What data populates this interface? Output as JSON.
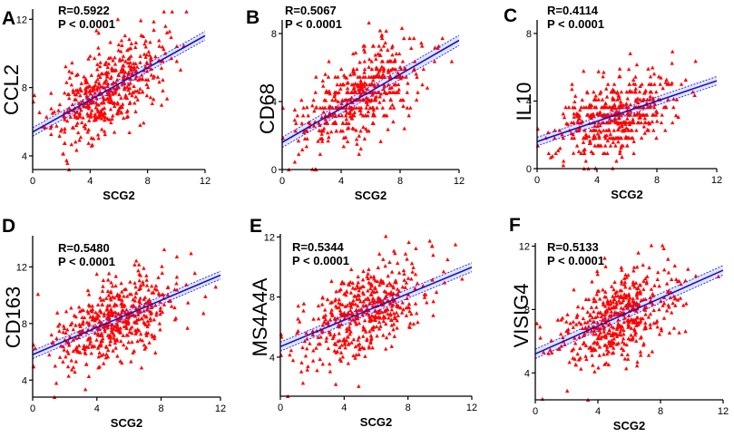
{
  "chart_data": [
    {
      "panel": "A",
      "type": "scatter",
      "xlabel": "SCG2",
      "ylabel": "CCL2",
      "r_text": "R=0.5922",
      "p_text": "P < 0.0001",
      "xlim": [
        0,
        12
      ],
      "ylim": [
        3.2,
        12.6
      ],
      "xticks": [
        "0",
        "4",
        "8",
        "12"
      ],
      "yticks": [
        "4",
        "8",
        "12"
      ],
      "xtick_values": [
        0,
        4,
        8,
        12
      ],
      "ytick_values": [
        4,
        8,
        12
      ],
      "fit": {
        "intercept": 5.4,
        "slope": 0.47,
        "ci": 0.25
      },
      "n_points": 500,
      "points_seed": 11
    },
    {
      "panel": "B",
      "type": "scatter",
      "xlabel": "SCG2",
      "ylabel": "CD68",
      "r_text": "R=0.5067",
      "p_text": "P < 0.0001",
      "xlim": [
        0,
        12
      ],
      "ylim": [
        0,
        8.8
      ],
      "xticks": [
        "0",
        "4",
        "8",
        "12"
      ],
      "yticks": [
        "0",
        "4",
        "8"
      ],
      "xtick_values": [
        0,
        4,
        8,
        12
      ],
      "ytick_values": [
        0,
        4,
        8
      ],
      "fit": {
        "intercept": 1.6,
        "slope": 0.5,
        "ci": 0.3
      },
      "n_points": 500,
      "points_seed": 23
    },
    {
      "panel": "C",
      "type": "scatter",
      "xlabel": "SCG2",
      "ylabel": "IL10",
      "r_text": "R=0.4114",
      "p_text": "P < 0.0001",
      "xlim": [
        0,
        12
      ],
      "ylim": [
        0,
        8.8
      ],
      "xticks": [
        "0",
        "4",
        "8",
        "12"
      ],
      "yticks": [
        "0",
        "4",
        "8"
      ],
      "xtick_values": [
        0,
        4,
        8,
        12
      ],
      "ytick_values": [
        0,
        4,
        8
      ],
      "fit": {
        "intercept": 1.6,
        "slope": 0.3,
        "ci": 0.25
      },
      "n_points": 500,
      "points_seed": 37
    },
    {
      "panel": "D",
      "type": "scatter",
      "xlabel": "SCG2",
      "ylabel": "CD163",
      "r_text": "R=0.5480",
      "p_text": "P < 0.0001",
      "xlim": [
        0,
        11.7
      ],
      "ylim": [
        2.8,
        14.2
      ],
      "xticks": [
        "0",
        "4",
        "8",
        "12"
      ],
      "yticks": [
        "4",
        "8",
        "12"
      ],
      "xtick_values": [
        0,
        4,
        8,
        12
      ],
      "ytick_values": [
        4,
        8,
        12
      ],
      "fit": {
        "intercept": 5.8,
        "slope": 0.48,
        "ci": 0.28
      },
      "n_points": 500,
      "points_seed": 41
    },
    {
      "panel": "E",
      "type": "scatter",
      "xlabel": "SCG2",
      "ylabel": "MS4A4A",
      "r_text": "R=0.5344",
      "p_text": "P < 0.0001",
      "xlim": [
        0,
        12
      ],
      "ylim": [
        1.4,
        12.2
      ],
      "xticks": [
        "0",
        "4",
        "8",
        "12"
      ],
      "yticks": [
        "4",
        "8",
        "12"
      ],
      "xtick_values": [
        0,
        4,
        8,
        12
      ],
      "ytick_values": [
        4,
        8,
        12
      ],
      "fit": {
        "intercept": 4.7,
        "slope": 0.44,
        "ci": 0.3
      },
      "n_points": 500,
      "points_seed": 53
    },
    {
      "panel": "F",
      "type": "scatter",
      "xlabel": "SCG2",
      "ylabel": "VISIG4",
      "r_text": "R=0.5133",
      "p_text": "P < 0.0001",
      "xlim": [
        0,
        12
      ],
      "ylim": [
        2.3,
        12.2
      ],
      "xticks": [
        "0",
        "4",
        "8",
        "12"
      ],
      "yticks": [
        "4",
        "8",
        "12"
      ],
      "xtick_values": [
        0,
        4,
        8,
        12
      ],
      "ytick_values": [
        4,
        8,
        12
      ],
      "fit": {
        "intercept": 5.2,
        "slope": 0.44,
        "ci": 0.3
      },
      "n_points": 500,
      "points_seed": 67
    }
  ],
  "colors": {
    "points": "#ff0000",
    "fit_line": "#1515c8",
    "ci_line": "#3030ff",
    "ci_band": "#c8d0ff",
    "axis": "#000000"
  }
}
